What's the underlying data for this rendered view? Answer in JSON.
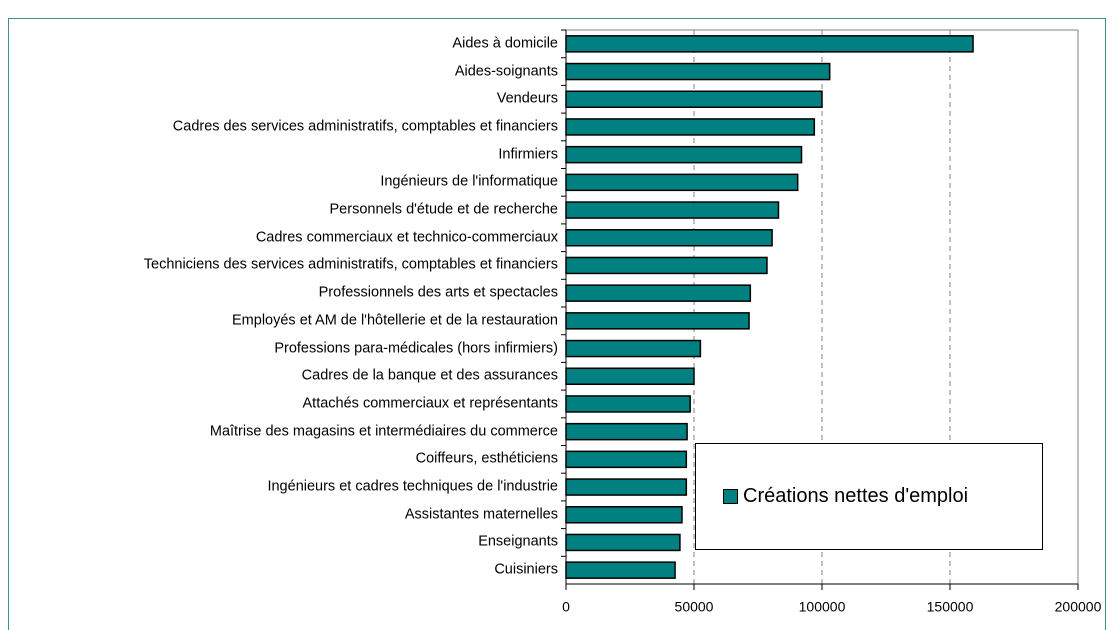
{
  "chart_data": {
    "type": "barh",
    "categories": [
      "Aides à domicile",
      "Aides-soignants",
      "Vendeurs",
      "Cadres des services administratifs, comptables et financiers",
      "Infirmiers",
      "Ingénieurs de l'informatique",
      "Personnels d'étude et de recherche",
      "Cadres commerciaux et technico-commerciaux",
      "Techniciens des services administratifs, comptables et financiers",
      "Professionnels des arts et spectacles",
      "Employés et AM de l'hôtellerie et de la restauration",
      "Professions para-médicales (hors infirmiers)",
      "Cadres de la banque et des assurances",
      "Attachés commerciaux et représentants",
      "Maîtrise des magasins et intermédiaires du commerce",
      "Coiffeurs, esthéticiens",
      "Ingénieurs et cadres techniques de l'industrie",
      "Assistantes maternelles",
      "Enseignants",
      "Cuisiniers"
    ],
    "series": [
      {
        "name": "Créations nettes d'emploi",
        "color": "#008080",
        "values": [
          159000,
          103000,
          100000,
          97000,
          92000,
          90500,
          83000,
          80500,
          78500,
          72000,
          71500,
          52500,
          50000,
          48500,
          47300,
          47000,
          47000,
          45300,
          44500,
          42600
        ]
      }
    ],
    "xlim": [
      0,
      200000
    ],
    "xticks": [
      0,
      50000,
      100000,
      150000,
      200000
    ],
    "grid": true
  }
}
